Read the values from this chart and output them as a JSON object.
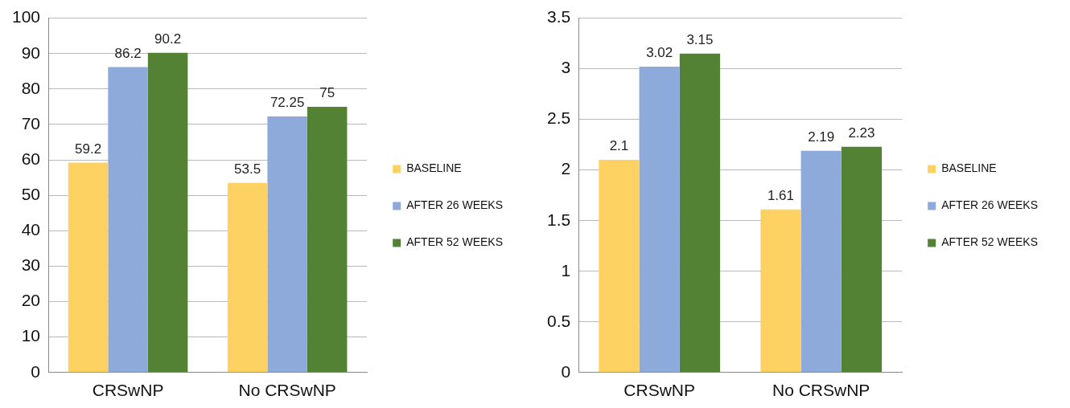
{
  "chart_data": [
    {
      "type": "bar",
      "categories": [
        "CRSwNP",
        "No CRSwNP"
      ],
      "series": [
        {
          "name": "BASELINE",
          "color": "#fdd262",
          "values": [
            59.2,
            53.5
          ]
        },
        {
          "name": "AFTER 26 WEEKS",
          "color": "#8eaadb",
          "values": [
            86.2,
            72.25
          ]
        },
        {
          "name": "AFTER 52 WEEKS",
          "color": "#548235",
          "values": [
            90.2,
            75
          ]
        }
      ],
      "ylim": [
        0,
        100
      ],
      "yticks": [
        0,
        10,
        20,
        30,
        40,
        50,
        60,
        70,
        80,
        90,
        100
      ],
      "grid": "y",
      "legend": "right",
      "data_labels": true
    },
    {
      "type": "bar",
      "categories": [
        "CRSwNP",
        "No CRSwNP"
      ],
      "series": [
        {
          "name": "BASELINE",
          "color": "#fdd262",
          "values": [
            2.1,
            1.61
          ]
        },
        {
          "name": "AFTER 26 WEEKS",
          "color": "#8eaadb",
          "values": [
            3.02,
            2.19
          ]
        },
        {
          "name": "AFTER 52 WEEKS",
          "color": "#548235",
          "values": [
            3.15,
            2.23
          ]
        }
      ],
      "ylim": [
        0,
        3.5
      ],
      "yticks": [
        0,
        0.5,
        1,
        1.5,
        2,
        2.5,
        3,
        3.5
      ],
      "grid": "y",
      "legend": "right",
      "data_labels": true
    }
  ]
}
